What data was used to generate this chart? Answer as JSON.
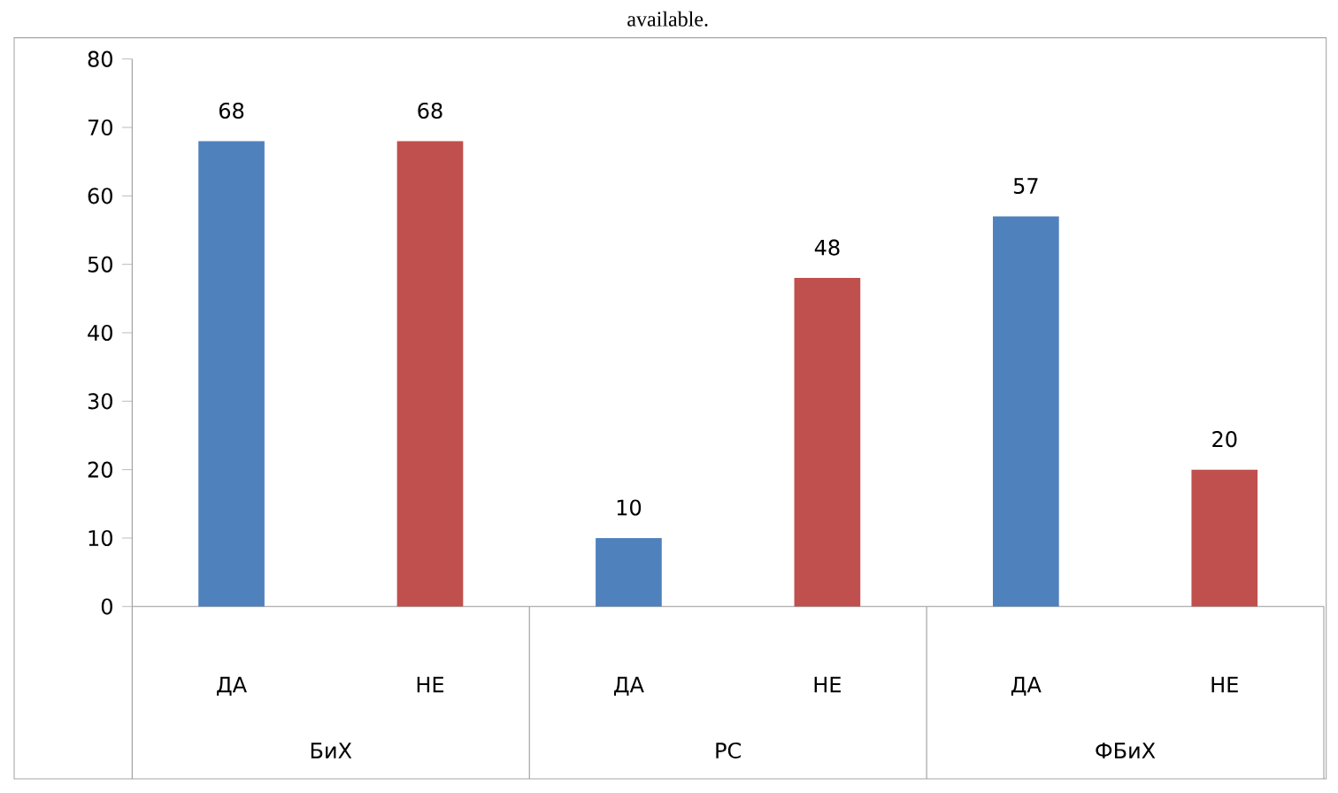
{
  "chart_data": {
    "type": "bar",
    "categories": [
      "ДА",
      "НЕ",
      "ДА",
      "НЕ",
      "ДА",
      "НЕ"
    ],
    "values": [
      68,
      68,
      10,
      48,
      57,
      20
    ],
    "colors": [
      "#4f81bd",
      "#c0504d",
      "#4f81bd",
      "#c0504d",
      "#4f81bd",
      "#c0504d"
    ],
    "ylim": [
      0,
      80
    ],
    "yticks": [
      0,
      10,
      20,
      30,
      40,
      50,
      60,
      70,
      80
    ],
    "data_labels": true,
    "grid": false,
    "annotations": [
      "available.",
      "БиХ",
      "РС",
      "ФБиХ"
    ]
  }
}
